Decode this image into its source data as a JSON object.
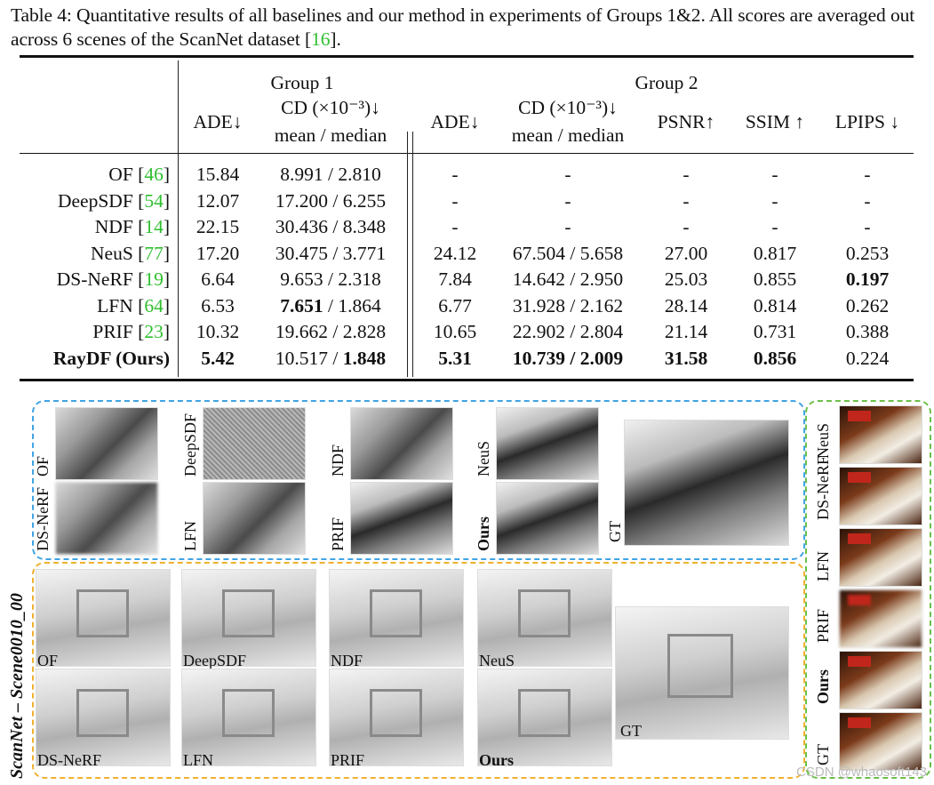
{
  "caption": {
    "prefix": "Table 4: Quantitative results of all baselines and our method in experiments of Groups 1&2. All scores are averaged out across 6 scenes of the ScanNet dataset [",
    "cite": "16",
    "suffix": "]."
  },
  "table": {
    "group1": "Group 1",
    "group2": "Group 2",
    "columns": {
      "ade": "ADE↓",
      "cd_line1": "CD (×10⁻³)↓",
      "cd_line2": "mean / median",
      "psnr": "PSNR↑",
      "ssim": "SSIM ↑",
      "lpips": "LPIPS ↓"
    },
    "rows": [
      {
        "method": "OF",
        "cite": "46",
        "g1_ade": "15.84",
        "g1_cd_mean": "8.991",
        "g1_cd_median": "2.810",
        "g2_ade": "-",
        "g2_cd": "-",
        "psnr": "-",
        "ssim": "-",
        "lpips": "-"
      },
      {
        "method": "DeepSDF",
        "cite": "54",
        "g1_ade": "12.07",
        "g1_cd_mean": "17.200",
        "g1_cd_median": "6.255",
        "g2_ade": "-",
        "g2_cd": "-",
        "psnr": "-",
        "ssim": "-",
        "lpips": "-"
      },
      {
        "method": "NDF",
        "cite": "14",
        "g1_ade": "22.15",
        "g1_cd_mean": "30.436",
        "g1_cd_median": "8.348",
        "g2_ade": "-",
        "g2_cd": "-",
        "psnr": "-",
        "ssim": "-",
        "lpips": "-"
      },
      {
        "method": "NeuS",
        "cite": "77",
        "g1_ade": "17.20",
        "g1_cd_mean": "30.475",
        "g1_cd_median": "3.771",
        "g2_ade": "24.12",
        "g2_cd": "67.504 / 5.658",
        "psnr": "27.00",
        "ssim": "0.817",
        "lpips": "0.253"
      },
      {
        "method": "DS-NeRF",
        "cite": "19",
        "g1_ade": "6.64",
        "g1_cd_mean": "9.653",
        "g1_cd_median": "2.318",
        "g2_ade": "7.84",
        "g2_cd": "14.642 / 2.950",
        "psnr": "25.03",
        "ssim": "0.855",
        "lpips": "0.197"
      },
      {
        "method": "LFN",
        "cite": "64",
        "g1_ade": "6.53",
        "g1_cd_mean": "7.651",
        "g1_cd_median": "1.864",
        "g2_ade": "6.77",
        "g2_cd": "31.928 / 2.162",
        "psnr": "28.14",
        "ssim": "0.814",
        "lpips": "0.262"
      },
      {
        "method": "PRIF",
        "cite": "23",
        "g1_ade": "10.32",
        "g1_cd_mean": "19.662",
        "g1_cd_median": "2.828",
        "g2_ade": "10.65",
        "g2_cd": "22.902 / 2.804",
        "psnr": "21.14",
        "ssim": "0.731",
        "lpips": "0.388"
      },
      {
        "method": "RayDF (Ours)",
        "cite": "",
        "g1_ade": "5.42",
        "g1_cd_mean": "10.517",
        "g1_cd_median": "1.848",
        "g2_ade": "5.31",
        "g2_cd": "10.739 / 2.009",
        "psnr": "31.58",
        "ssim": "0.856",
        "lpips": "0.224"
      }
    ]
  },
  "figure": {
    "side_label": "ScanNet – Scene0010_00",
    "depth_labels": [
      "OF",
      "DeepSDF",
      "NDF",
      "NeuS",
      "DS-NeRF",
      "LFN",
      "PRIF",
      "Ours",
      "GT"
    ],
    "mesh_labels": [
      "OF",
      "DeepSDF",
      "NDF",
      "NeuS",
      "DS-NeRF",
      "LFN",
      "PRIF",
      "Ours",
      "GT"
    ],
    "rgb_labels": [
      "NeuS",
      "DS-NeRF",
      "LFN",
      "PRIF",
      "Ours",
      "GT"
    ],
    "colors": {
      "blue_box": "#3fa4e6",
      "orange_box": "#f0b030",
      "green_box": "#6cc04a",
      "cite_green": "#2fbf2f"
    }
  },
  "watermark": "CSDN @whaosoft143"
}
